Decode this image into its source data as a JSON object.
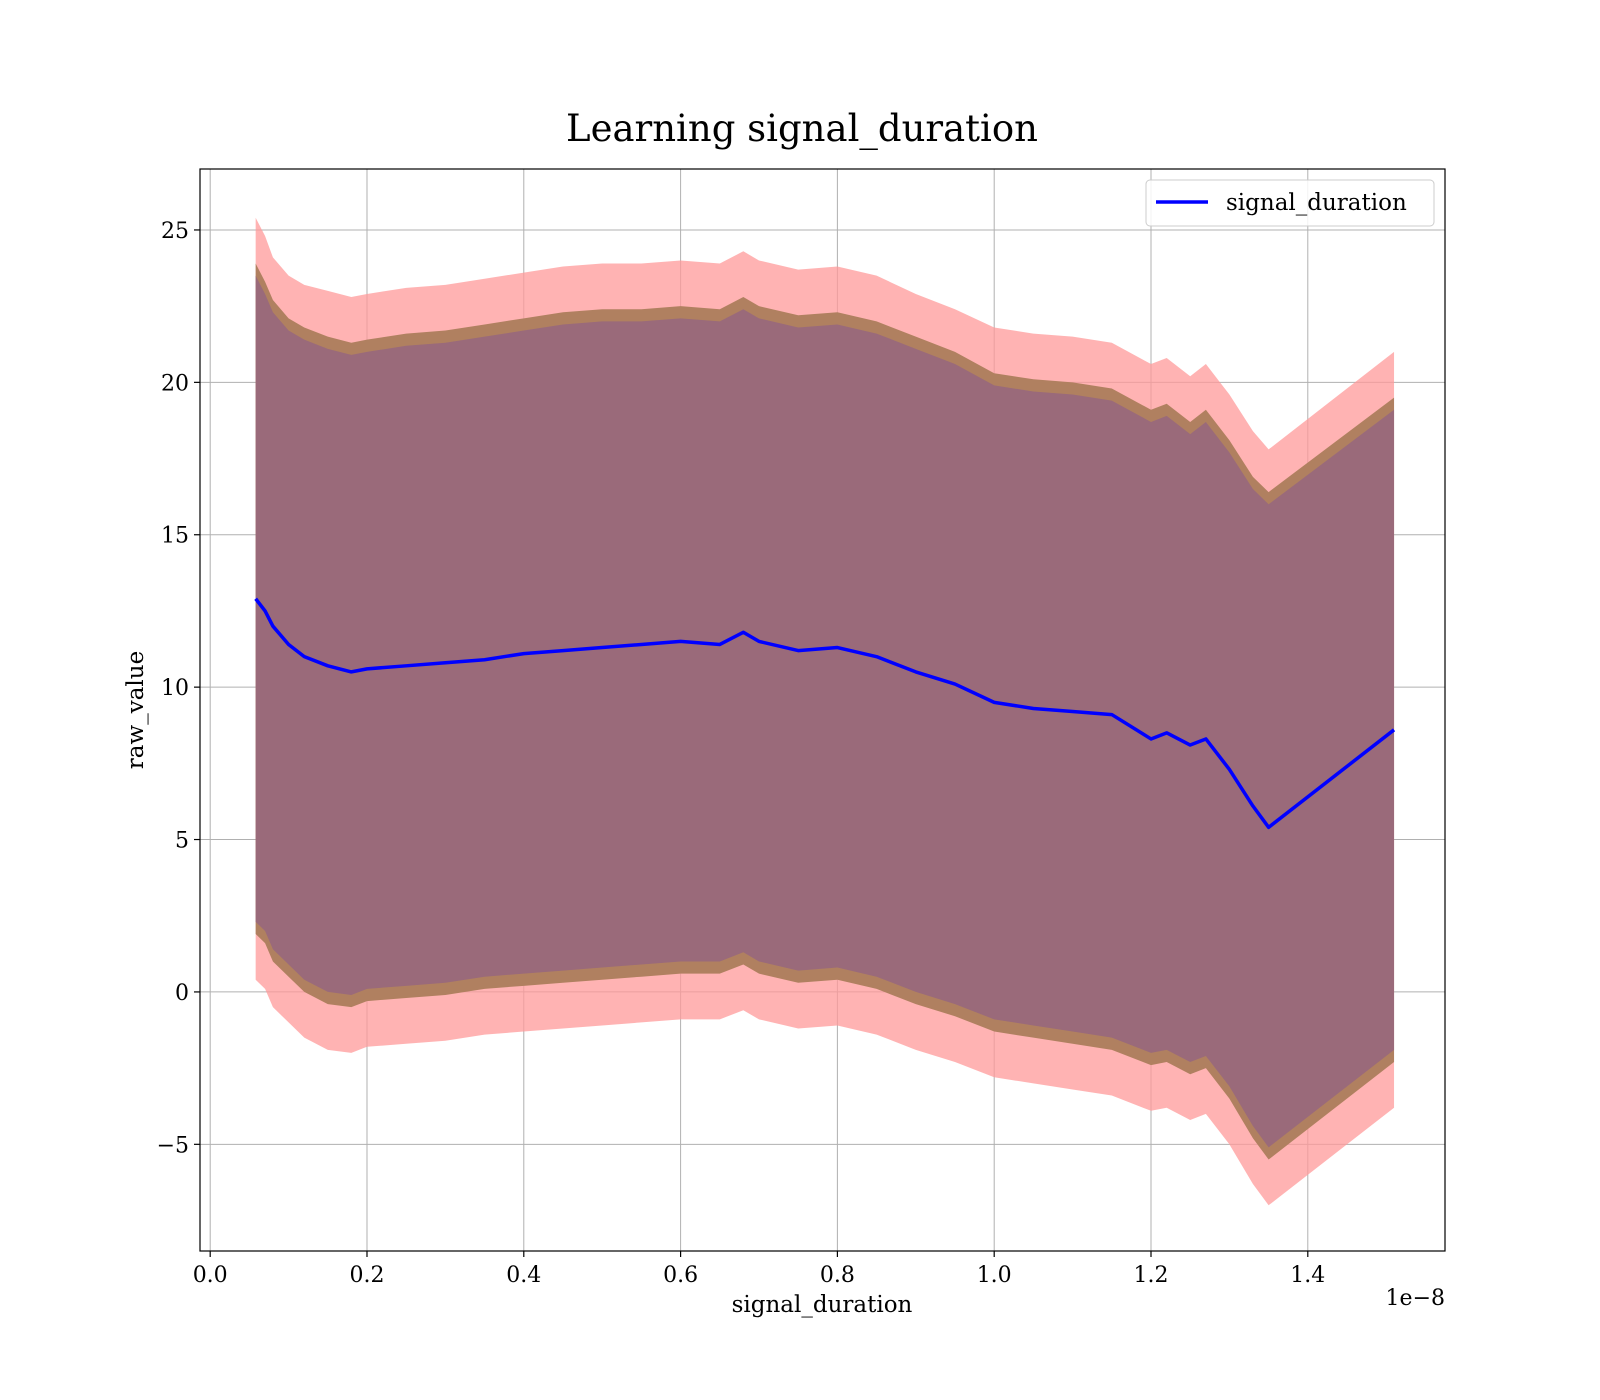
{
  "chart_data": {
    "type": "line",
    "title": "Learning signal_duration",
    "xlabel": "signal_duration",
    "ylabel": "raw_value",
    "x_offset_label": "1e−8",
    "xlim": [
      -0.013,
      1.575
    ],
    "ylim": [
      -8.5,
      27.0
    ],
    "x_ticks": [
      0.0,
      0.2,
      0.4,
      0.6,
      0.8,
      1.0,
      1.2,
      1.4
    ],
    "x_tick_labels": [
      "0.0",
      "0.2",
      "0.4",
      "0.6",
      "0.8",
      "1.0",
      "1.2",
      "1.4"
    ],
    "y_ticks": [
      -5,
      0,
      5,
      10,
      15,
      20,
      25
    ],
    "y_tick_labels": [
      "−5",
      "0",
      "5",
      "10",
      "15",
      "20",
      "25"
    ],
    "grid": true,
    "legend_position": "top-right",
    "colors": {
      "line": "#0000ff",
      "outer_band": "#ff9999",
      "middle_band": "#b08060",
      "inner_band": "#9a6a7a"
    },
    "series": [
      {
        "name": "signal_duration",
        "x": [
          0.058,
          0.07,
          0.08,
          0.1,
          0.12,
          0.15,
          0.18,
          0.2,
          0.25,
          0.3,
          0.35,
          0.4,
          0.45,
          0.5,
          0.55,
          0.6,
          0.65,
          0.68,
          0.7,
          0.75,
          0.8,
          0.85,
          0.9,
          0.95,
          1.0,
          1.05,
          1.1,
          1.15,
          1.2,
          1.22,
          1.25,
          1.27,
          1.3,
          1.33,
          1.35,
          1.51
        ],
        "y": [
          12.9,
          12.5,
          12.0,
          11.4,
          11.0,
          10.7,
          10.5,
          10.6,
          10.7,
          10.8,
          10.9,
          11.1,
          11.2,
          11.3,
          11.4,
          11.5,
          11.4,
          11.8,
          11.5,
          11.2,
          11.3,
          11.0,
          10.5,
          10.1,
          9.5,
          9.3,
          9.2,
          9.1,
          8.3,
          8.5,
          8.1,
          8.3,
          7.3,
          6.1,
          5.4,
          8.6
        ]
      }
    ],
    "bands": [
      {
        "level": "outer",
        "x": [
          0.058,
          0.07,
          0.08,
          0.1,
          0.12,
          0.15,
          0.18,
          0.2,
          0.25,
          0.3,
          0.35,
          0.4,
          0.45,
          0.5,
          0.55,
          0.6,
          0.65,
          0.68,
          0.7,
          0.75,
          0.8,
          0.85,
          0.9,
          0.95,
          1.0,
          1.05,
          1.1,
          1.15,
          1.2,
          1.22,
          1.25,
          1.27,
          1.3,
          1.33,
          1.35,
          1.51
        ],
        "upper": [
          25.4,
          24.8,
          24.1,
          23.5,
          23.2,
          23.0,
          22.8,
          22.9,
          23.1,
          23.2,
          23.4,
          23.6,
          23.8,
          23.9,
          23.9,
          24.0,
          23.9,
          24.3,
          24.0,
          23.7,
          23.8,
          23.5,
          22.9,
          22.4,
          21.8,
          21.6,
          21.5,
          21.3,
          20.6,
          20.8,
          20.2,
          20.6,
          19.6,
          18.4,
          17.8,
          21.0
        ],
        "lower": [
          0.4,
          0.1,
          -0.5,
          -1.0,
          -1.5,
          -1.9,
          -2.0,
          -1.8,
          -1.7,
          -1.6,
          -1.4,
          -1.3,
          -1.2,
          -1.1,
          -1.0,
          -0.9,
          -0.9,
          -0.6,
          -0.9,
          -1.2,
          -1.1,
          -1.4,
          -1.9,
          -2.3,
          -2.8,
          -3.0,
          -3.2,
          -3.4,
          -3.9,
          -3.8,
          -4.2,
          -4.0,
          -5.0,
          -6.3,
          -7.0,
          -3.8
        ]
      },
      {
        "level": "middle",
        "x": [
          0.058,
          0.07,
          0.08,
          0.1,
          0.12,
          0.15,
          0.18,
          0.2,
          0.25,
          0.3,
          0.35,
          0.4,
          0.45,
          0.5,
          0.55,
          0.6,
          0.65,
          0.68,
          0.7,
          0.75,
          0.8,
          0.85,
          0.9,
          0.95,
          1.0,
          1.05,
          1.1,
          1.15,
          1.2,
          1.22,
          1.25,
          1.27,
          1.3,
          1.33,
          1.35,
          1.51
        ],
        "upper": [
          23.9,
          23.3,
          22.7,
          22.1,
          21.8,
          21.5,
          21.3,
          21.4,
          21.6,
          21.7,
          21.9,
          22.1,
          22.3,
          22.4,
          22.4,
          22.5,
          22.4,
          22.8,
          22.5,
          22.2,
          22.3,
          22.0,
          21.5,
          21.0,
          20.3,
          20.1,
          20.0,
          19.8,
          19.1,
          19.3,
          18.7,
          19.1,
          18.1,
          16.9,
          16.4,
          19.5
        ],
        "lower": [
          1.9,
          1.6,
          1.0,
          0.5,
          0.0,
          -0.4,
          -0.5,
          -0.3,
          -0.2,
          -0.1,
          0.1,
          0.2,
          0.3,
          0.4,
          0.5,
          0.6,
          0.6,
          0.9,
          0.6,
          0.3,
          0.4,
          0.1,
          -0.4,
          -0.8,
          -1.3,
          -1.5,
          -1.7,
          -1.9,
          -2.4,
          -2.3,
          -2.7,
          -2.5,
          -3.5,
          -4.8,
          -5.5,
          -2.3
        ]
      },
      {
        "level": "inner",
        "x": [
          0.058,
          0.07,
          0.08,
          0.1,
          0.12,
          0.15,
          0.18,
          0.2,
          0.25,
          0.3,
          0.35,
          0.4,
          0.45,
          0.5,
          0.55,
          0.6,
          0.65,
          0.68,
          0.7,
          0.75,
          0.8,
          0.85,
          0.9,
          0.95,
          1.0,
          1.05,
          1.1,
          1.15,
          1.2,
          1.22,
          1.25,
          1.27,
          1.3,
          1.33,
          1.35,
          1.51
        ],
        "upper": [
          23.5,
          22.9,
          22.3,
          21.7,
          21.4,
          21.1,
          20.9,
          21.0,
          21.2,
          21.3,
          21.5,
          21.7,
          21.9,
          22.0,
          22.0,
          22.1,
          22.0,
          22.4,
          22.1,
          21.8,
          21.9,
          21.6,
          21.1,
          20.6,
          19.9,
          19.7,
          19.6,
          19.4,
          18.7,
          18.9,
          18.3,
          18.7,
          17.7,
          16.5,
          16.0,
          19.1
        ],
        "lower": [
          2.3,
          2.0,
          1.4,
          0.9,
          0.4,
          0.0,
          -0.1,
          0.1,
          0.2,
          0.3,
          0.5,
          0.6,
          0.7,
          0.8,
          0.9,
          1.0,
          1.0,
          1.3,
          1.0,
          0.7,
          0.8,
          0.5,
          0.0,
          -0.4,
          -0.9,
          -1.1,
          -1.3,
          -1.5,
          -2.0,
          -1.9,
          -2.3,
          -2.1,
          -3.1,
          -4.4,
          -5.1,
          -1.9
        ]
      }
    ]
  }
}
